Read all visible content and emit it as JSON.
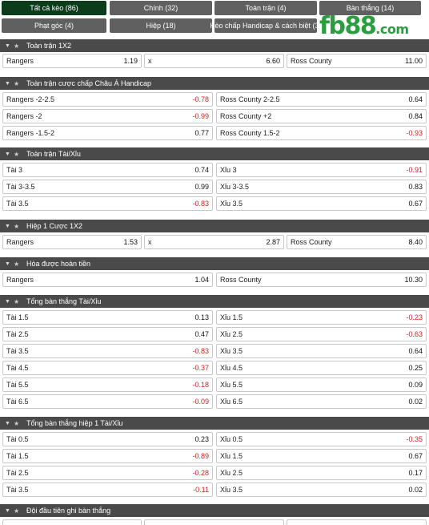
{
  "tabs": [
    "Tất cả kèo (86)",
    "Chính (32)",
    "Toàn trận (4)",
    "Bàn thắng (14)",
    "Phạt góc (4)",
    "Hiệp (18)",
    "Kèo chấp Handicap & cách biệt (3)"
  ],
  "logo": {
    "main": "fb88",
    "suffix": ".com",
    "color": "#2a9d3e"
  },
  "colors": {
    "active_tab": "#0b3d1a",
    "tab": "#606060",
    "header": "#4a4a4a",
    "negative": "#d81e1e"
  },
  "sections": [
    {
      "title": "Toàn trận 1X2",
      "rows": [
        [
          {
            "label": "Rangers",
            "odd": "1.19"
          },
          {
            "label": "x",
            "odd": "6.60"
          },
          {
            "label": "Ross County",
            "odd": "11.00"
          }
        ]
      ]
    },
    {
      "title": "Toàn trận cược chấp Châu Á Handicap",
      "rows": [
        [
          {
            "label": "Rangers -2-2.5",
            "odd": "-0.78"
          },
          {
            "label": "Ross County 2-2.5",
            "odd": "0.64"
          }
        ],
        [
          {
            "label": "Rangers -2",
            "odd": "-0.99"
          },
          {
            "label": "Ross County +2",
            "odd": "0.84"
          }
        ],
        [
          {
            "label": "Rangers -1.5-2",
            "odd": "0.77"
          },
          {
            "label": "Ross County 1.5-2",
            "odd": "-0.93"
          }
        ]
      ]
    },
    {
      "title": "Toàn trận Tài/Xỉu",
      "rows": [
        [
          {
            "label": "Tài 3",
            "odd": "0.74"
          },
          {
            "label": "Xỉu 3",
            "odd": "-0.91"
          }
        ],
        [
          {
            "label": "Tài 3-3.5",
            "odd": "0.99"
          },
          {
            "label": "Xỉu 3-3.5",
            "odd": "0.83"
          }
        ],
        [
          {
            "label": "Tài 3.5",
            "odd": "-0.83"
          },
          {
            "label": "Xỉu 3.5",
            "odd": "0.67"
          }
        ]
      ]
    },
    {
      "title": "Hiệp 1 Cược 1X2",
      "rows": [
        [
          {
            "label": "Rangers",
            "odd": "1.53"
          },
          {
            "label": "x",
            "odd": "2.87"
          },
          {
            "label": "Ross County",
            "odd": "8.40"
          }
        ]
      ]
    },
    {
      "title": "Hòa được hoàn tiền",
      "rows": [
        [
          {
            "label": "Rangers",
            "odd": "1.04"
          },
          {
            "label": "Ross County",
            "odd": "10.30"
          }
        ]
      ]
    },
    {
      "title": "Tổng bàn thắng Tài/Xỉu",
      "rows": [
        [
          {
            "label": "Tài 1.5",
            "odd": "0.13"
          },
          {
            "label": "Xỉu 1.5",
            "odd": "-0.23"
          }
        ],
        [
          {
            "label": "Tài 2.5",
            "odd": "0.47"
          },
          {
            "label": "Xỉu 2.5",
            "odd": "-0.63"
          }
        ],
        [
          {
            "label": "Tài 3.5",
            "odd": "-0.83"
          },
          {
            "label": "Xỉu 3.5",
            "odd": "0.64"
          }
        ],
        [
          {
            "label": "Tài 4.5",
            "odd": "-0.37"
          },
          {
            "label": "Xỉu 4.5",
            "odd": "0.25"
          }
        ],
        [
          {
            "label": "Tài 5.5",
            "odd": "-0.18"
          },
          {
            "label": "Xỉu 5.5",
            "odd": "0.09"
          }
        ],
        [
          {
            "label": "Tài 6.5",
            "odd": "-0.09"
          },
          {
            "label": "Xỉu 6.5",
            "odd": "0.02"
          }
        ]
      ]
    },
    {
      "title": "Tổng bàn thắng hiệp 1 Tài/Xỉu",
      "rows": [
        [
          {
            "label": "Tài 0.5",
            "odd": "0.23"
          },
          {
            "label": "Xỉu 0.5",
            "odd": "-0.35"
          }
        ],
        [
          {
            "label": "Tài 1.5",
            "odd": "-0.89"
          },
          {
            "label": "Xỉu 1.5",
            "odd": "0.67"
          }
        ],
        [
          {
            "label": "Tài 2.5",
            "odd": "-0.28"
          },
          {
            "label": "Xỉu 2.5",
            "odd": "0.17"
          }
        ],
        [
          {
            "label": "Tài 3.5",
            "odd": "-0.11"
          },
          {
            "label": "Xỉu 3.5",
            "odd": "0.02"
          }
        ]
      ]
    },
    {
      "title": "Đội đầu tiên ghi bàn thắng",
      "rows": [
        [
          {
            "label": "",
            "odd": ""
          },
          {
            "label": "",
            "odd": ""
          },
          {
            "label": "",
            "odd": ""
          }
        ]
      ]
    }
  ]
}
